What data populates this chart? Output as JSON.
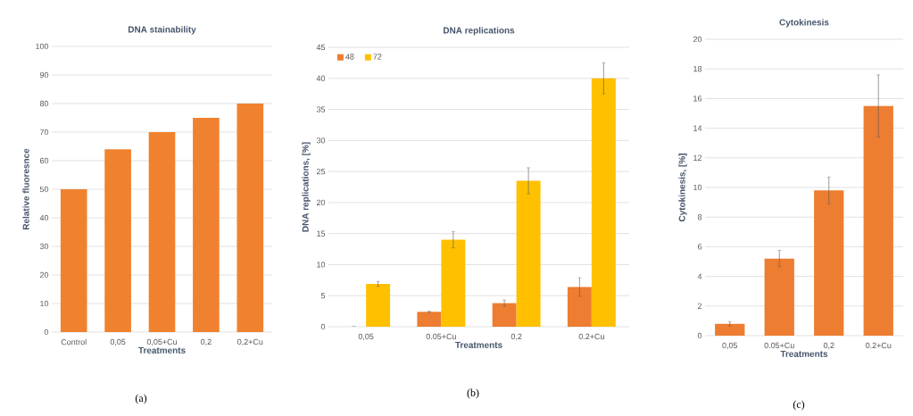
{
  "chart_data": [
    {
      "type": "bar",
      "title": "DNA stainability",
      "xlabel": "Treatments",
      "ylabel": "Relative fluoresnce",
      "categories": [
        "Control",
        "0,05",
        "0,05+Cu",
        "0,2",
        "0,2+Cu"
      ],
      "values": [
        50,
        64,
        70,
        75,
        80
      ],
      "color": "#f0822f",
      "ylim": [
        0,
        100
      ],
      "yticks": [
        0,
        10,
        20,
        30,
        40,
        50,
        60,
        70,
        80,
        90,
        100
      ],
      "grid": "y",
      "annotations": [
        "(a)"
      ]
    },
    {
      "type": "bar",
      "title": "DNA replications",
      "xlabel": "Treatments",
      "ylabel": "DNA replications, [%]",
      "categories": [
        "0,05",
        "0.05+Cu",
        "0,2",
        "0.2+Cu"
      ],
      "series": [
        {
          "name": "48",
          "color": "#ed7d31",
          "values": [
            0,
            2.4,
            3.8,
            6.4
          ],
          "errors": [
            null,
            0.1,
            0.5,
            1.5
          ]
        },
        {
          "name": "72",
          "color": "#ffc000",
          "values": [
            6.9,
            14.0,
            23.5,
            40.0
          ],
          "errors": [
            0.4,
            1.3,
            2.1,
            2.5
          ]
        }
      ],
      "ylim": [
        0,
        45
      ],
      "yticks": [
        0,
        5,
        10,
        15,
        20,
        25,
        30,
        35,
        40,
        45
      ],
      "grid": "y",
      "legend": "top left",
      "annotations": [
        "(b)"
      ]
    },
    {
      "type": "bar",
      "title": "Cytokinesis",
      "xlabel": "Treatments",
      "ylabel": "Cytokinesis, [%]",
      "categories": [
        "0,05",
        "0.05+Cu",
        "0,2",
        "0.2+Cu"
      ],
      "values": [
        0.8,
        5.2,
        9.8,
        15.5
      ],
      "errors": [
        0.15,
        0.55,
        0.9,
        2.1
      ],
      "color": "#ed7d31",
      "ylim": [
        0,
        20
      ],
      "yticks": [
        0,
        2,
        4,
        6,
        8,
        10,
        12,
        14,
        16,
        18,
        20
      ],
      "grid": "y",
      "annotations": [
        "(c)"
      ]
    }
  ]
}
